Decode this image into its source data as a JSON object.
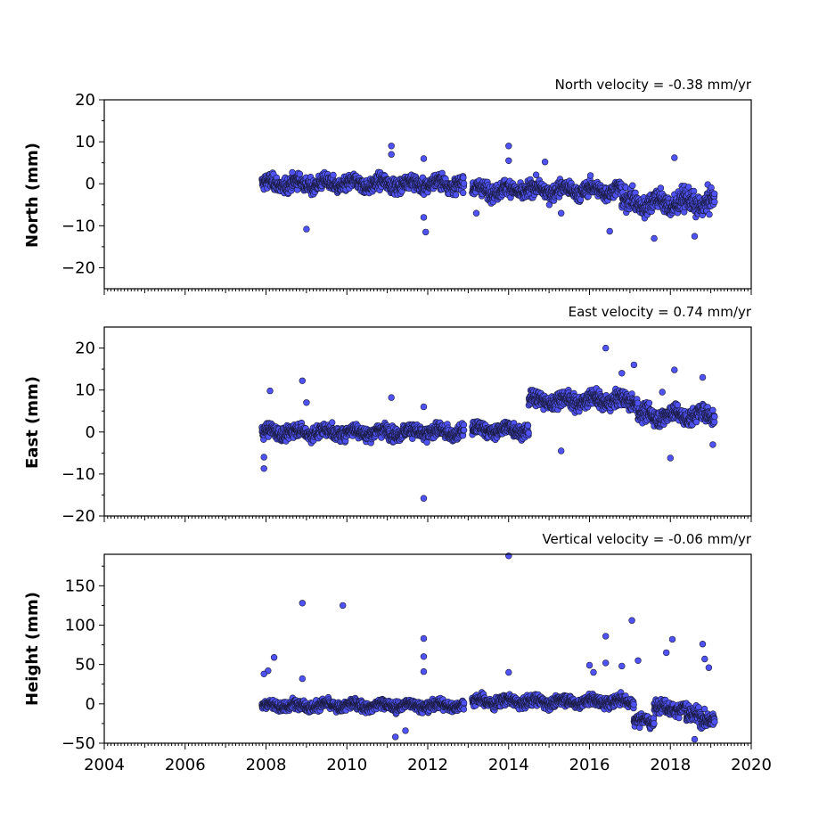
{
  "chart_data": {
    "type": "scatter",
    "x_axis": {
      "range": [
        2004,
        2020
      ],
      "ticks": [
        2004,
        2006,
        2008,
        2010,
        2012,
        2014,
        2016,
        2018,
        2020
      ],
      "minor_ticks_per_year": 12
    },
    "panels": [
      {
        "id": "north",
        "title": "North velocity = -0.38 mm/yr",
        "ylabel": "North (mm)",
        "ylim": [
          -25,
          20
        ],
        "yticks": [
          -20,
          -10,
          0,
          10,
          20
        ],
        "show_x_tick_labels": false,
        "segments": [
          {
            "t_start": 2007.9,
            "t_end": 2012.9,
            "mean": 0.0,
            "noise": 2.2
          },
          {
            "t_start": 2013.1,
            "t_end": 2016.8,
            "mean": -1.5,
            "noise": 2.3
          },
          {
            "t_start": 2016.8,
            "t_end": 2019.1,
            "mean": -4.5,
            "noise": 3.2
          }
        ],
        "outliers": [
          [
            2009.0,
            -10.8
          ],
          [
            2011.1,
            9.0
          ],
          [
            2011.1,
            7.0
          ],
          [
            2011.9,
            6.0
          ],
          [
            2011.95,
            -11.5
          ],
          [
            2011.9,
            -8.0
          ],
          [
            2014.0,
            9.0
          ],
          [
            2014.0,
            5.5
          ],
          [
            2014.9,
            5.2
          ],
          [
            2016.5,
            -11.3
          ],
          [
            2017.6,
            -13.0
          ],
          [
            2018.1,
            6.2
          ],
          [
            2018.6,
            -12.5
          ],
          [
            2015.3,
            -7.0
          ],
          [
            2013.2,
            -7.0
          ]
        ]
      },
      {
        "id": "east",
        "title": "East velocity = 0.74 mm/yr",
        "ylabel": "East (mm)",
        "ylim": [
          -20,
          25
        ],
        "yticks": [
          -20,
          -10,
          0,
          10,
          20
        ],
        "show_x_tick_labels": false,
        "segments": [
          {
            "t_start": 2007.9,
            "t_end": 2012.9,
            "mean": 0.0,
            "noise": 2.0
          },
          {
            "t_start": 2013.1,
            "t_end": 2014.5,
            "mean": 0.5,
            "noise": 2.0
          },
          {
            "t_start": 2014.5,
            "t_end": 2017.2,
            "mean": 7.5,
            "noise": 2.3
          },
          {
            "t_start": 2017.2,
            "t_end": 2019.1,
            "mean": 4.0,
            "noise": 2.5
          }
        ],
        "outliers": [
          [
            2007.95,
            -8.7
          ],
          [
            2007.95,
            -6.0
          ],
          [
            2008.1,
            9.8
          ],
          [
            2008.9,
            12.2
          ],
          [
            2009.0,
            7.0
          ],
          [
            2011.1,
            8.2
          ],
          [
            2011.9,
            -15.8
          ],
          [
            2011.9,
            6.0
          ],
          [
            2016.4,
            20.0
          ],
          [
            2017.1,
            16.0
          ],
          [
            2016.8,
            14.0
          ],
          [
            2018.1,
            14.8
          ],
          [
            2018.0,
            -6.2
          ],
          [
            2018.8,
            13.0
          ],
          [
            2019.05,
            -3.0
          ],
          [
            2015.3,
            -4.5
          ],
          [
            2017.8,
            9.5
          ]
        ]
      },
      {
        "id": "height",
        "title": "Vertical velocity = -0.06 mm/yr",
        "ylabel": "Height (mm)",
        "ylim": [
          -50,
          190
        ],
        "yticks": [
          -50,
          0,
          50,
          100,
          150
        ],
        "show_x_tick_labels": true,
        "segments": [
          {
            "t_start": 2007.9,
            "t_end": 2012.9,
            "mean": -2.0,
            "noise": 8.0
          },
          {
            "t_start": 2013.1,
            "t_end": 2017.1,
            "mean": 3.0,
            "noise": 8.5
          },
          {
            "t_start": 2017.1,
            "t_end": 2017.6,
            "mean": -22.0,
            "noise": 9.0
          },
          {
            "t_start": 2017.6,
            "t_end": 2018.4,
            "mean": -5.0,
            "noise": 10.0
          },
          {
            "t_start": 2018.4,
            "t_end": 2019.1,
            "mean": -18.0,
            "noise": 12.0
          }
        ],
        "outliers": [
          [
            2008.9,
            128
          ],
          [
            2009.9,
            125
          ],
          [
            2008.2,
            59
          ],
          [
            2008.05,
            42
          ],
          [
            2007.95,
            38
          ],
          [
            2008.9,
            32
          ],
          [
            2011.9,
            83
          ],
          [
            2011.9,
            60
          ],
          [
            2011.9,
            41
          ],
          [
            2011.2,
            -42
          ],
          [
            2011.45,
            -34
          ],
          [
            2014.0,
            188
          ],
          [
            2014.0,
            40
          ],
          [
            2016.0,
            49
          ],
          [
            2016.1,
            40
          ],
          [
            2016.4,
            86
          ],
          [
            2016.4,
            52
          ],
          [
            2016.8,
            48
          ],
          [
            2017.05,
            106
          ],
          [
            2017.2,
            55
          ],
          [
            2017.9,
            65
          ],
          [
            2018.05,
            82
          ],
          [
            2018.8,
            76
          ],
          [
            2018.85,
            57
          ],
          [
            2018.95,
            46
          ],
          [
            2018.6,
            -45
          ]
        ]
      }
    ]
  }
}
